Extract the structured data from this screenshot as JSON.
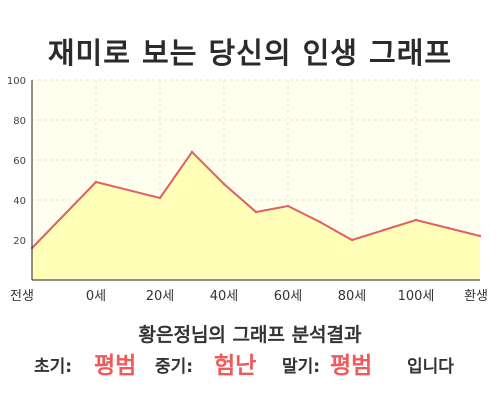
{
  "title": "재미로 보는 당신의 인생 그래프",
  "chart_data": {
    "type": "area",
    "x": [
      -20,
      0,
      20,
      30,
      40,
      50,
      60,
      70,
      80,
      90,
      100,
      110,
      120
    ],
    "y": [
      16,
      49,
      41,
      64,
      48,
      34,
      37,
      29,
      20,
      25,
      30,
      26,
      22
    ],
    "xlim": [
      -20,
      120
    ],
    "ylim": [
      0,
      100
    ],
    "yticks": [
      20,
      40,
      60,
      80,
      100
    ],
    "xtick_labels": [
      {
        "x": -20,
        "label": "전생"
      },
      {
        "x": 0,
        "label": "0세"
      },
      {
        "x": 20,
        "label": "20세"
      },
      {
        "x": 40,
        "label": "40세"
      },
      {
        "x": 60,
        "label": "60세"
      },
      {
        "x": 80,
        "label": "80세"
      },
      {
        "x": 100,
        "label": "100세"
      },
      {
        "x": 120,
        "label": "환생"
      }
    ],
    "grid": true,
    "line_color": "#e06060",
    "fill_color": "#ffffb8",
    "plot_bg": "#fffff0"
  },
  "summary": "황은정님의 그래프 분석결과",
  "verdict": {
    "early_label": "초기:",
    "early_value": "평범",
    "mid_label": "중기:",
    "mid_value": "험난",
    "late_label": "말기:",
    "late_value": "평범",
    "suffix": "입니다"
  },
  "colors": {
    "accent": "#f05a5a",
    "text": "#333333"
  }
}
